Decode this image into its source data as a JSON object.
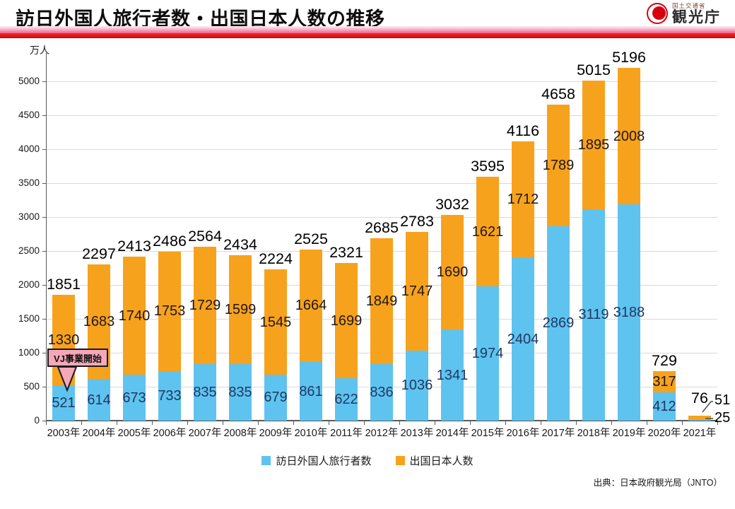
{
  "header": {
    "title": "訪日外国人旅行者数・出国日本人数の推移",
    "logo": {
      "ministry": "国土交通省",
      "agency": "観光庁"
    }
  },
  "chart_data": {
    "type": "bar",
    "stacked": true,
    "unit": "万人",
    "categories": [
      "2003年",
      "2004年",
      "2005年",
      "2006年",
      "2007年",
      "2008年",
      "2009年",
      "2010年",
      "2011年",
      "2012年",
      "2013年",
      "2014年",
      "2015年",
      "2016年",
      "2017年",
      "2018年",
      "2019年",
      "2020年",
      "2021年"
    ],
    "series": [
      {
        "name": "訪日外国人旅行者数",
        "color": "#5fc3ef",
        "label_color": "#1f3864",
        "values": [
          521,
          614,
          673,
          733,
          835,
          835,
          679,
          861,
          622,
          836,
          1036,
          1341,
          1974,
          2404,
          2869,
          3119,
          3188,
          412,
          25
        ]
      },
      {
        "name": "出国日本人数",
        "color": "#f7a21d",
        "label_color": "#201713",
        "values": [
          1330,
          1683,
          1740,
          1753,
          1729,
          1599,
          1545,
          1664,
          1699,
          1849,
          1747,
          1690,
          1621,
          1712,
          1789,
          1895,
          2008,
          317,
          51
        ]
      }
    ],
    "totals": [
      1851,
      2297,
      2413,
      2486,
      2564,
      2434,
      2224,
      2525,
      2321,
      2685,
      2783,
      3032,
      3595,
      4116,
      4658,
      5015,
      5196,
      729,
      76
    ],
    "yticks": [
      0,
      500,
      1000,
      1500,
      2000,
      2500,
      3000,
      3500,
      4000,
      4500,
      5000
    ],
    "ylim": [
      0,
      5417
    ],
    "grid": true,
    "legend_position": "bottom",
    "annotation": {
      "text": "VJ事業開始",
      "year": "2003年"
    },
    "callout_2021": {
      "outbound": "51",
      "inbound": "25"
    }
  },
  "footer": {
    "source": "出典：日本政府観光局（JNTO）"
  }
}
